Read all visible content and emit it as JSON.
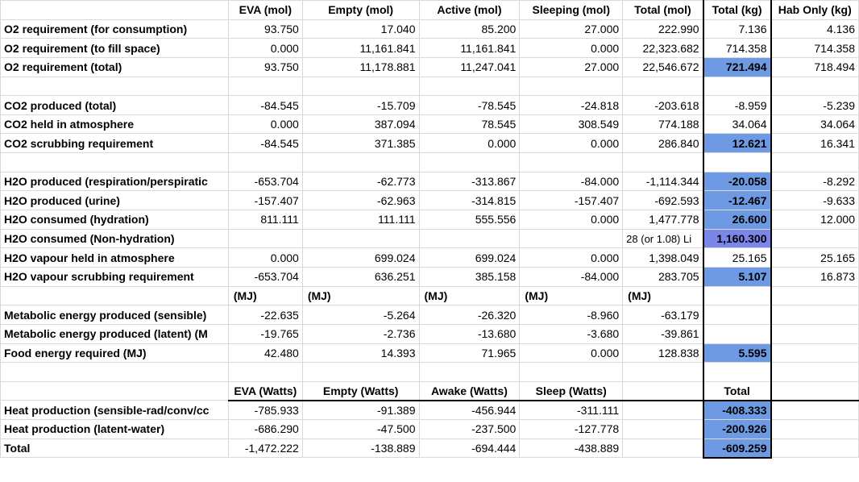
{
  "header": {
    "c1": "EVA (mol)",
    "c2": "Empty (mol)",
    "c3": "Active (mol)",
    "c4": "Sleeping (mol)",
    "c5": "Total (mol)",
    "c6": "Total (kg)",
    "c7": "Hab Only (kg)"
  },
  "rows": {
    "r1": {
      "label": "O2 requirement (for consumption)",
      "v": [
        "93.750",
        "17.040",
        "85.200",
        "27.000",
        "222.990",
        "7.136",
        "4.136"
      ]
    },
    "r2": {
      "label": "O2 requirement (to fill space)",
      "v": [
        "0.000",
        "11,161.841",
        "11,161.841",
        "0.000",
        "22,323.682",
        "714.358",
        "714.358"
      ]
    },
    "r3": {
      "label": "O2 requirement (total)",
      "v": [
        "93.750",
        "11,178.881",
        "11,247.041",
        "27.000",
        "22,546.672",
        "721.494",
        "718.494"
      ]
    },
    "r5": {
      "label": "CO2 produced (total)",
      "v": [
        "-84.545",
        "-15.709",
        "-78.545",
        "-24.818",
        "-203.618",
        "-8.959",
        "-5.239"
      ]
    },
    "r6": {
      "label": "CO2 held in atmosphere",
      "v": [
        "0.000",
        "387.094",
        "78.545",
        "308.549",
        "774.188",
        "34.064",
        "34.064"
      ]
    },
    "r7": {
      "label": "CO2 scrubbing requirement",
      "v": [
        "-84.545",
        "371.385",
        "0.000",
        "0.000",
        "286.840",
        "12.621",
        "16.341"
      ]
    },
    "r9": {
      "label": "H2O produced (respiration/perspiratic",
      "v": [
        "-653.704",
        "-62.773",
        "-313.867",
        "-84.000",
        "-1,114.344",
        "-20.058",
        "-8.292"
      ]
    },
    "r10": {
      "label": "H2O produced (urine)",
      "v": [
        "-157.407",
        "-62.963",
        "-314.815",
        "-157.407",
        "-692.593",
        "-12.467",
        "-9.633"
      ]
    },
    "r11": {
      "label": "H2O consumed (hydration)",
      "v": [
        "811.111",
        "111.111",
        "555.556",
        "0.000",
        "1,477.778",
        "26.600",
        "12.000"
      ]
    },
    "r12": {
      "label": "H2O consumed (Non-hydration)",
      "v": [
        "",
        "",
        "",
        "",
        "28 (or 1.08) Li",
        "1,160.300",
        ""
      ]
    },
    "r13": {
      "label": "H2O vapour held in atmosphere",
      "v": [
        "0.000",
        "699.024",
        "699.024",
        "0.000",
        "1,398.049",
        "25.165",
        "25.165"
      ]
    },
    "r14": {
      "label": "H2O vapour scrubbing requirement",
      "v": [
        "-653.704",
        "636.251",
        "385.158",
        "-84.000",
        "283.705",
        "5.107",
        "16.873"
      ]
    },
    "r15": {
      "label": "",
      "v": [
        "(MJ)",
        "(MJ)",
        "(MJ)",
        "(MJ)",
        "(MJ)",
        "",
        ""
      ]
    },
    "r16": {
      "label": "Metabolic energy produced (sensible)",
      "v": [
        "-22.635",
        "-5.264",
        "-26.320",
        "-8.960",
        "-63.179",
        "",
        ""
      ]
    },
    "r17": {
      "label": "Metabolic energy produced (latent) (M",
      "v": [
        "-19.765",
        "-2.736",
        "-13.680",
        "-3.680",
        "-39.861",
        "",
        ""
      ]
    },
    "r18": {
      "label": "Food energy required (MJ)",
      "v": [
        "42.480",
        "14.393",
        "71.965",
        "0.000",
        "128.838",
        "5.595",
        ""
      ]
    },
    "r20": {
      "label": "",
      "v": [
        "EVA (Watts)",
        "Empty (Watts)",
        "Awake (Watts)",
        "Sleep (Watts)",
        "",
        "Total",
        ""
      ]
    },
    "r21": {
      "label": "Heat production (sensible-rad/conv/cc",
      "v": [
        "-785.933",
        "-91.389",
        "-456.944",
        "-311.111",
        "",
        "-408.333",
        ""
      ]
    },
    "r22": {
      "label": "Heat production (latent-water)",
      "v": [
        "-686.290",
        "-47.500",
        "-237.500",
        "-127.778",
        "",
        "-200.926",
        ""
      ]
    },
    "r23": {
      "label": "Total",
      "v": [
        "-1,472.222",
        "-138.889",
        "-694.444",
        "-438.889",
        "",
        "-609.259",
        ""
      ]
    }
  },
  "colors": {
    "highlight": "#6e9ae3",
    "highlight_alt": "#7b86ea",
    "gridline": "#d9d9d9"
  }
}
